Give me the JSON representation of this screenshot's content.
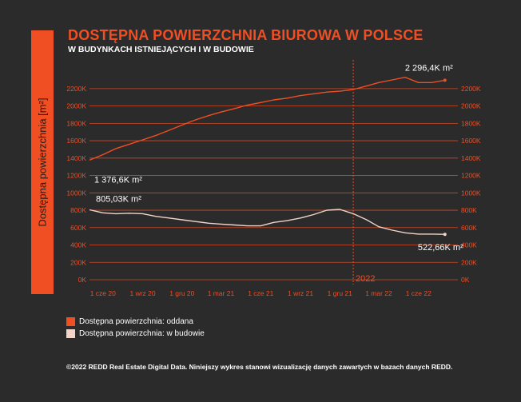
{
  "header": {
    "title": "DOSTĘPNA POWIERZCHNIA BIUROWA W POLSCE",
    "subtitle": "W BUDYNKACH ISTNIEJĄCYCH I W BUDOWIE"
  },
  "colors": {
    "accent": "#f04e23",
    "series_built": "#f04e23",
    "series_construction": "#f4d3c8",
    "background": "#2b2b2b"
  },
  "footer": {
    "text": "©2022 REDD Real Estate Digital Data. Niniejszy wykres stanowi wizualizację danych zawartych w bazach danych REDD."
  },
  "chart_data": {
    "type": "line",
    "ylabel": "Dostępna powierzchnia [m²]",
    "ylim": [
      0,
      2300000
    ],
    "yticks": [
      0,
      200000,
      400000,
      600000,
      800000,
      1000000,
      1200000,
      1400000,
      1600000,
      1800000,
      2000000,
      2200000
    ],
    "ytick_labels": [
      "0K",
      "200K",
      "400K",
      "600K",
      "800K",
      "1000K",
      "1200K",
      "1400K",
      "1600K",
      "1800K",
      "2000K",
      "2200K"
    ],
    "xlim": [
      "2020-05-01",
      "2022-08-31"
    ],
    "xticks": [
      "2020-06-01",
      "2020-09-01",
      "2020-12-01",
      "2021-03-01",
      "2021-06-01",
      "2021-09-01",
      "2021-12-01",
      "2022-03-01",
      "2022-06-01"
    ],
    "xtick_labels": [
      "1 cze 20",
      "1 wrz 20",
      "1 gru 20",
      "1 mar 21",
      "1 cze 21",
      "1 wrz 21",
      "1 gru 21",
      "1 mar 22",
      "1 cze 22"
    ],
    "grid": true,
    "legend_position": "bottom-left",
    "marker": {
      "date": "2022-01-01",
      "label": "2022"
    },
    "series": [
      {
        "name": "Dostępna powierzchnia: oddana",
        "color": "#f04e23",
        "points": [
          [
            "2020-05-01",
            1376600
          ],
          [
            "2020-06-01",
            1440000
          ],
          [
            "2020-07-01",
            1510000
          ],
          [
            "2020-08-01",
            1560000
          ],
          [
            "2020-09-01",
            1610000
          ],
          [
            "2020-10-01",
            1660000
          ],
          [
            "2020-11-01",
            1720000
          ],
          [
            "2020-12-01",
            1780000
          ],
          [
            "2021-01-01",
            1840000
          ],
          [
            "2021-02-01",
            1890000
          ],
          [
            "2021-03-01",
            1930000
          ],
          [
            "2021-04-01",
            1970000
          ],
          [
            "2021-05-01",
            2010000
          ],
          [
            "2021-06-01",
            2040000
          ],
          [
            "2021-07-01",
            2070000
          ],
          [
            "2021-08-01",
            2090000
          ],
          [
            "2021-09-01",
            2120000
          ],
          [
            "2021-10-01",
            2140000
          ],
          [
            "2021-11-01",
            2160000
          ],
          [
            "2021-12-01",
            2170000
          ],
          [
            "2022-01-01",
            2190000
          ],
          [
            "2022-02-01",
            2230000
          ],
          [
            "2022-03-01",
            2270000
          ],
          [
            "2022-04-01",
            2300000
          ],
          [
            "2022-05-01",
            2330000
          ],
          [
            "2022-06-01",
            2270000
          ],
          [
            "2022-07-01",
            2270000
          ],
          [
            "2022-08-01",
            2296400
          ]
        ],
        "annotations": [
          {
            "date": "2020-05-01",
            "label": "1 376,6K m²"
          },
          {
            "date": "2022-08-01",
            "label": "2 296,4K m²"
          }
        ]
      },
      {
        "name": "Dostępna powierzchnia: w budowie",
        "color": "#f4d3c8",
        "points": [
          [
            "2020-05-01",
            805030
          ],
          [
            "2020-06-01",
            770000
          ],
          [
            "2020-07-01",
            760000
          ],
          [
            "2020-08-01",
            765000
          ],
          [
            "2020-09-01",
            760000
          ],
          [
            "2020-10-01",
            730000
          ],
          [
            "2020-11-01",
            710000
          ],
          [
            "2020-12-01",
            690000
          ],
          [
            "2021-01-01",
            670000
          ],
          [
            "2021-02-01",
            650000
          ],
          [
            "2021-03-01",
            640000
          ],
          [
            "2021-04-01",
            630000
          ],
          [
            "2021-05-01",
            620000
          ],
          [
            "2021-06-01",
            620000
          ],
          [
            "2021-07-01",
            660000
          ],
          [
            "2021-08-01",
            680000
          ],
          [
            "2021-09-01",
            710000
          ],
          [
            "2021-10-01",
            750000
          ],
          [
            "2021-11-01",
            800000
          ],
          [
            "2021-12-01",
            810000
          ],
          [
            "2022-01-01",
            760000
          ],
          [
            "2022-02-01",
            690000
          ],
          [
            "2022-03-01",
            610000
          ],
          [
            "2022-04-01",
            570000
          ],
          [
            "2022-05-01",
            540000
          ],
          [
            "2022-06-01",
            525000
          ],
          [
            "2022-07-01",
            525000
          ],
          [
            "2022-08-01",
            522660
          ]
        ],
        "annotations": [
          {
            "date": "2020-05-01",
            "label": "805,03K m²"
          },
          {
            "date": "2022-08-01",
            "label": "522,66K m²"
          }
        ]
      }
    ]
  }
}
